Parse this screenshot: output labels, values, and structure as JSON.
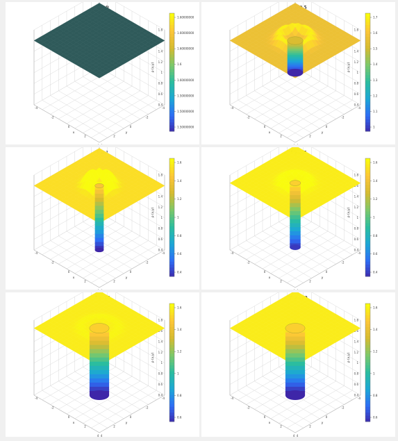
{
  "colors": {
    "background": "#f0f0f0",
    "panel": "#ffffff",
    "grid": "#d9d9d9",
    "axis": "#444444",
    "colormap": [
      "#3e26a8",
      "#2e6df5",
      "#1ca7d6",
      "#2bbd9f",
      "#7cc86a",
      "#d4bb30",
      "#fcc538",
      "#f9fb0e"
    ]
  },
  "chart_data": [
    {
      "type": "surface",
      "title": "T = 0",
      "zlabel": "ρ (x,y)",
      "xlabel": "x",
      "ylabel": "y",
      "x_ticks": [
        "4",
        "2",
        "0",
        "-2",
        "-4"
      ],
      "y_ticks": [
        "4",
        "2",
        "0",
        "-2",
        "-4"
      ],
      "z_ticks": [
        "1.8",
        "1.6",
        "1.4",
        "1.2",
        "1",
        "0.8",
        "0.6",
        "0.4"
      ],
      "zlim": [
        0.4,
        1.8
      ],
      "surface": {
        "baseline": 1.6,
        "well_depth": 0.0,
        "well_radius": 0,
        "ring_height": 0.0
      },
      "colorbar": {
        "ticks": [
          "1.60000000",
          "1.60000000",
          "1.60000000",
          "1.6",
          "1.60000000",
          "1.50000000",
          "1.50000000",
          "1.50000000"
        ],
        "range": [
          1.5,
          1.6
        ]
      }
    },
    {
      "type": "surface",
      "title": "T = 0.5",
      "zlabel": "ρ (x,y)",
      "xlabel": "x",
      "ylabel": "y",
      "x_ticks": [
        "4",
        "2",
        "0",
        "-2",
        "-4"
      ],
      "y_ticks": [
        "4",
        "2",
        "0",
        "-2",
        "-4"
      ],
      "z_ticks": [
        "1.8",
        "1.6",
        "1.4",
        "1.2",
        "1",
        "0.8",
        "0.6",
        "0.4"
      ],
      "zlim": [
        0.4,
        1.8
      ],
      "surface": {
        "baseline": 1.6,
        "well_depth": 0.6,
        "well_radius": 0.8,
        "ring_height": 0.15
      },
      "colorbar": {
        "ticks": [
          "1.7",
          "1.6",
          "1.5",
          "1.4",
          "1.3",
          "1.2",
          "1.1",
          "1"
        ],
        "range": [
          1,
          1.75
        ]
      }
    },
    {
      "type": "surface",
      "title": "T = 1",
      "zlabel": "ρ (x,y)",
      "xlabel": "x",
      "ylabel": "y",
      "x_ticks": [
        "4",
        "2",
        "0",
        "-2",
        "-4"
      ],
      "y_ticks": [
        "4",
        "2",
        "0",
        "-2",
        "-4"
      ],
      "z_ticks": [
        "1.8",
        "1.6",
        "1.4",
        "1.2",
        "1",
        "0.8",
        "0.6",
        "0.4"
      ],
      "zlim": [
        0.4,
        1.8
      ],
      "surface": {
        "baseline": 1.6,
        "well_depth": 1.2,
        "well_radius": 0.45,
        "ring_height": 0.2
      },
      "colorbar": {
        "ticks": [
          "1.6",
          "1.4",
          "1.2",
          "1",
          "0.8",
          "0.6",
          "0.4"
        ],
        "range": [
          0.4,
          1.7
        ]
      }
    },
    {
      "type": "surface",
      "title": "T = 2.5",
      "zlabel": "ρ (x,y)",
      "xlabel": "x",
      "ylabel": "y",
      "x_ticks": [
        "4",
        "2",
        "0",
        "-2",
        "-4"
      ],
      "y_ticks": [
        "4",
        "2",
        "0",
        "-2",
        "-4"
      ],
      "z_ticks": [
        "1.8",
        "1.6",
        "1.4",
        "1.2",
        "1",
        "0.8",
        "0.6",
        "0.4"
      ],
      "zlim": [
        0.4,
        1.8
      ],
      "surface": {
        "baseline": 1.65,
        "well_depth": 1.2,
        "well_radius": 0.55,
        "ring_height": 0.1
      },
      "colorbar": {
        "ticks": [
          "1.6",
          "1.4",
          "1.2",
          "1",
          "0.8",
          "0.6",
          "0.4"
        ],
        "range": [
          0.4,
          1.7
        ]
      }
    },
    {
      "type": "surface",
      "title": "T = 10",
      "zlabel": "ρ (x,y)",
      "xlabel": "x",
      "ylabel": "y",
      "x_ticks": [
        "4",
        "2",
        "0",
        "-2",
        "-4"
      ],
      "y_ticks": [
        "4",
        "2",
        "0",
        "-2",
        "-4"
      ],
      "z_ticks": [
        "1.8",
        "1.6",
        "1.4",
        "1.2",
        "1",
        "0.8",
        "0.6",
        "0.4"
      ],
      "zlim": [
        0.4,
        1.8
      ],
      "surface": {
        "baseline": 1.65,
        "well_depth": 1.25,
        "well_radius": 1.0,
        "ring_height": 0.04
      },
      "colorbar": {
        "ticks": [
          "1.6",
          "1.4",
          "1.2",
          "1",
          "0.8",
          "0.6"
        ],
        "range": [
          0.45,
          1.7
        ]
      }
    },
    {
      "type": "surface",
      "title": "T = 100",
      "zlabel": "ρ (x,y)",
      "xlabel": "x",
      "ylabel": "y",
      "x_ticks": [
        "4",
        "2",
        "0",
        "-2",
        "-4"
      ],
      "y_ticks": [
        "4",
        "2",
        "0",
        "-2",
        "-4"
      ],
      "z_ticks": [
        "1.8",
        "1.6",
        "1.4",
        "1.2",
        "1",
        "0.8",
        "0.6",
        "0.4"
      ],
      "zlim": [
        0.4,
        1.8
      ],
      "surface": {
        "baseline": 1.65,
        "well_depth": 1.25,
        "well_radius": 1.0,
        "ring_height": 0.0
      },
      "colorbar": {
        "ticks": [
          "1.6",
          "1.4",
          "1.2",
          "1",
          "0.8",
          "0.6"
        ],
        "range": [
          0.45,
          1.7
        ]
      }
    }
  ]
}
